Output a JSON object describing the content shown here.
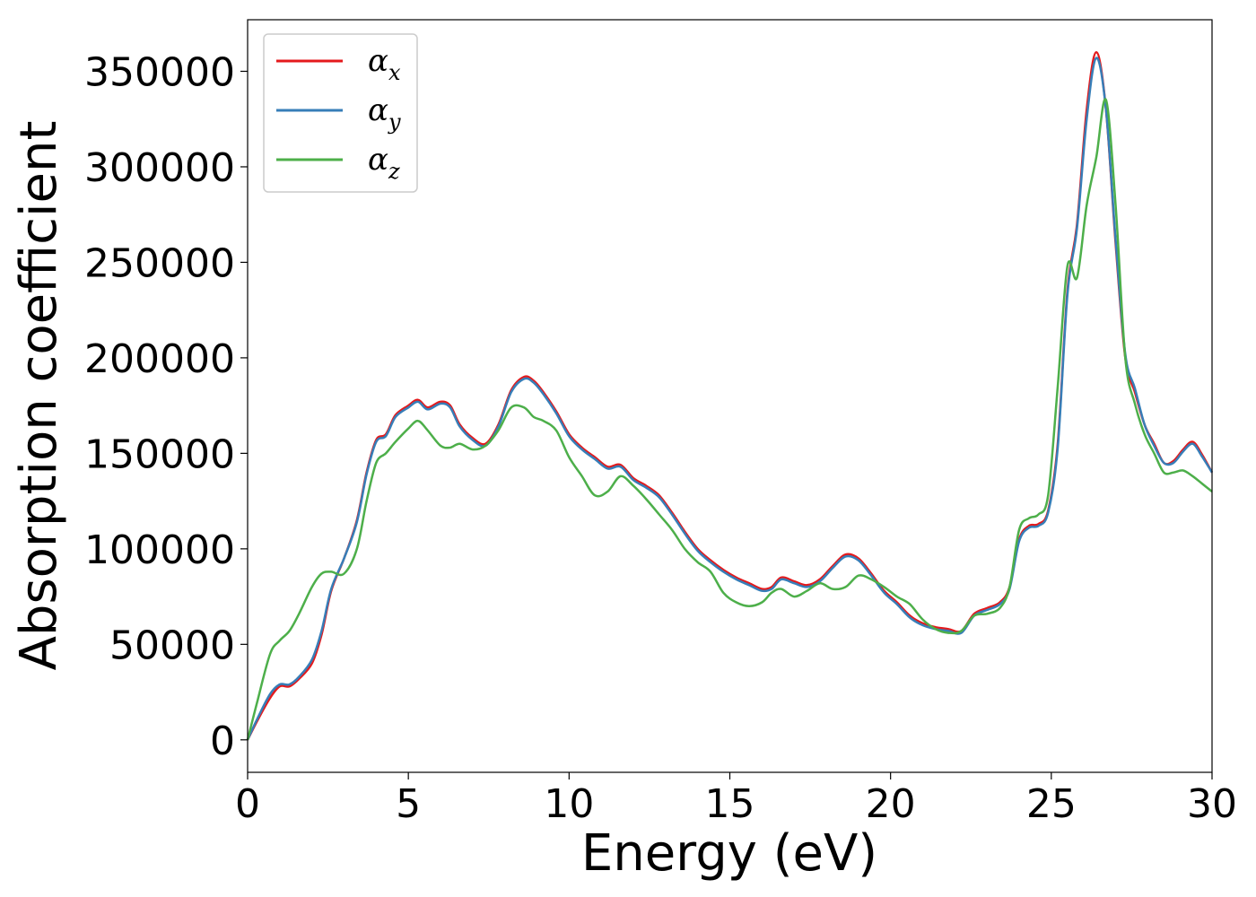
{
  "chart_data": {
    "type": "line",
    "xlabel": "Energy (eV)",
    "ylabel": "Absorption coefficient",
    "xlim": [
      0,
      30
    ],
    "ylim": [
      -17000,
      377000
    ],
    "xticks": [
      0,
      5,
      10,
      15,
      20,
      25,
      30
    ],
    "yticks": [
      0,
      50000,
      100000,
      150000,
      200000,
      250000,
      300000,
      350000
    ],
    "grid": false,
    "legend_position": "top-left",
    "series": [
      {
        "name": "α_x",
        "legend_main": "α",
        "legend_sub": "x",
        "color": "#e41a1c",
        "x": [
          0,
          0.3,
          0.7,
          1.0,
          1.3,
          1.6,
          2.0,
          2.3,
          2.6,
          3.0,
          3.4,
          3.7,
          4.0,
          4.3,
          4.6,
          5.0,
          5.3,
          5.6,
          6.0,
          6.3,
          6.6,
          7.0,
          7.4,
          7.8,
          8.2,
          8.6,
          8.9,
          9.2,
          9.6,
          10.0,
          10.4,
          10.8,
          11.2,
          11.6,
          12.0,
          12.4,
          12.8,
          13.2,
          13.6,
          14.0,
          14.4,
          14.8,
          15.2,
          15.6,
          16.0,
          16.3,
          16.6,
          17.0,
          17.4,
          17.8,
          18.2,
          18.6,
          19.0,
          19.4,
          19.8,
          20.2,
          20.6,
          21.0,
          21.4,
          21.8,
          22.2,
          22.6,
          23.0,
          23.4,
          23.7,
          24.0,
          24.3,
          24.6,
          24.9,
          25.2,
          25.5,
          25.8,
          26.1,
          26.4,
          26.7,
          27.0,
          27.3,
          27.6,
          27.9,
          28.2,
          28.5,
          28.8,
          29.1,
          29.4,
          29.7,
          30.0
        ],
        "values": [
          0,
          10000,
          22000,
          28000,
          28000,
          32000,
          40000,
          55000,
          78000,
          95000,
          115000,
          140000,
          157000,
          160000,
          170000,
          175000,
          178000,
          174000,
          177000,
          175000,
          165000,
          158000,
          155000,
          165000,
          183000,
          190000,
          188000,
          182000,
          172000,
          160000,
          153000,
          148000,
          143000,
          144000,
          137000,
          133000,
          128000,
          119000,
          109000,
          100000,
          94000,
          89000,
          85000,
          82000,
          79000,
          80000,
          85000,
          83000,
          81000,
          84000,
          91000,
          97000,
          95000,
          87000,
          78000,
          72000,
          65000,
          61000,
          59000,
          58000,
          57000,
          66000,
          69000,
          72000,
          80000,
          105000,
          112000,
          113000,
          120000,
          155000,
          235000,
          270000,
          330000,
          360000,
          330000,
          260000,
          200000,
          182000,
          165000,
          155000,
          145000,
          146000,
          152000,
          156000,
          149000,
          140000
        ]
      },
      {
        "name": "α_y",
        "legend_main": "α",
        "legend_sub": "y",
        "color": "#377eb8",
        "x": [
          0,
          0.3,
          0.7,
          1.0,
          1.3,
          1.6,
          2.0,
          2.3,
          2.6,
          3.0,
          3.4,
          3.7,
          4.0,
          4.3,
          4.6,
          5.0,
          5.3,
          5.6,
          6.0,
          6.3,
          6.6,
          7.0,
          7.4,
          7.8,
          8.2,
          8.6,
          8.9,
          9.2,
          9.6,
          10.0,
          10.4,
          10.8,
          11.2,
          11.6,
          12.0,
          12.4,
          12.8,
          13.2,
          13.6,
          14.0,
          14.4,
          14.8,
          15.2,
          15.6,
          16.0,
          16.3,
          16.6,
          17.0,
          17.4,
          17.8,
          18.2,
          18.6,
          19.0,
          19.4,
          19.8,
          20.2,
          20.6,
          21.0,
          21.4,
          21.8,
          22.2,
          22.6,
          23.0,
          23.4,
          23.7,
          24.0,
          24.3,
          24.6,
          24.9,
          25.2,
          25.5,
          25.8,
          26.1,
          26.4,
          26.7,
          27.0,
          27.3,
          27.6,
          27.9,
          28.2,
          28.5,
          28.8,
          29.1,
          29.4,
          29.7,
          30.0
        ],
        "values": [
          0,
          11000,
          24000,
          29000,
          29000,
          33000,
          42000,
          57000,
          79000,
          95000,
          114000,
          139000,
          156000,
          159000,
          169000,
          174000,
          177000,
          173000,
          176000,
          174000,
          164000,
          157000,
          154000,
          164000,
          182000,
          189000,
          187000,
          181000,
          171000,
          159000,
          152000,
          147000,
          142000,
          143000,
          136000,
          132000,
          127000,
          118000,
          108000,
          99000,
          93000,
          88000,
          84000,
          81000,
          78000,
          79000,
          84000,
          82000,
          80000,
          83000,
          90000,
          96000,
          94000,
          86000,
          77000,
          71000,
          64000,
          60000,
          58000,
          57000,
          56000,
          65000,
          68000,
          71000,
          79000,
          104000,
          111000,
          112000,
          119000,
          153000,
          233000,
          268000,
          325000,
          357000,
          330000,
          262000,
          202000,
          184000,
          165000,
          154000,
          145000,
          145000,
          151000,
          155000,
          148000,
          140000
        ]
      },
      {
        "name": "α_z",
        "legend_main": "α",
        "legend_sub": "z",
        "color": "#4daf4a",
        "x": [
          0,
          0.3,
          0.7,
          1.0,
          1.3,
          1.6,
          2.0,
          2.3,
          2.6,
          3.0,
          3.4,
          3.7,
          4.0,
          4.3,
          4.6,
          5.0,
          5.3,
          5.6,
          6.0,
          6.3,
          6.6,
          7.0,
          7.4,
          7.8,
          8.2,
          8.6,
          8.9,
          9.2,
          9.6,
          10.0,
          10.4,
          10.8,
          11.2,
          11.6,
          12.0,
          12.4,
          12.8,
          13.2,
          13.6,
          14.0,
          14.4,
          14.8,
          15.2,
          15.6,
          16.0,
          16.3,
          16.6,
          17.0,
          17.4,
          17.8,
          18.2,
          18.6,
          19.0,
          19.4,
          19.8,
          20.2,
          20.6,
          21.0,
          21.4,
          21.8,
          22.2,
          22.6,
          23.0,
          23.4,
          23.7,
          24.0,
          24.3,
          24.6,
          24.9,
          25.2,
          25.5,
          25.8,
          26.1,
          26.4,
          26.7,
          27.0,
          27.3,
          27.6,
          27.9,
          28.2,
          28.5,
          28.8,
          29.1,
          29.4,
          29.7,
          30.0
        ],
        "values": [
          0,
          20000,
          45000,
          52000,
          57000,
          66000,
          80000,
          87000,
          88000,
          87000,
          100000,
          125000,
          145000,
          150000,
          156000,
          163000,
          167000,
          162000,
          154000,
          153000,
          155000,
          152000,
          154000,
          162000,
          174000,
          174000,
          169000,
          167000,
          162000,
          148000,
          138000,
          128000,
          130000,
          138000,
          133000,
          126000,
          118000,
          110000,
          100000,
          93000,
          88000,
          77000,
          72000,
          70000,
          72000,
          77000,
          79000,
          75000,
          78000,
          82000,
          79000,
          80000,
          86000,
          84000,
          80000,
          75000,
          71000,
          63000,
          58000,
          56000,
          57000,
          65000,
          66000,
          69000,
          80000,
          110000,
          116000,
          118000,
          128000,
          185000,
          248000,
          242000,
          280000,
          305000,
          335000,
          280000,
          200000,
          176000,
          160000,
          150000,
          140000,
          140000,
          141000,
          138000,
          134000,
          130000
        ]
      }
    ]
  }
}
